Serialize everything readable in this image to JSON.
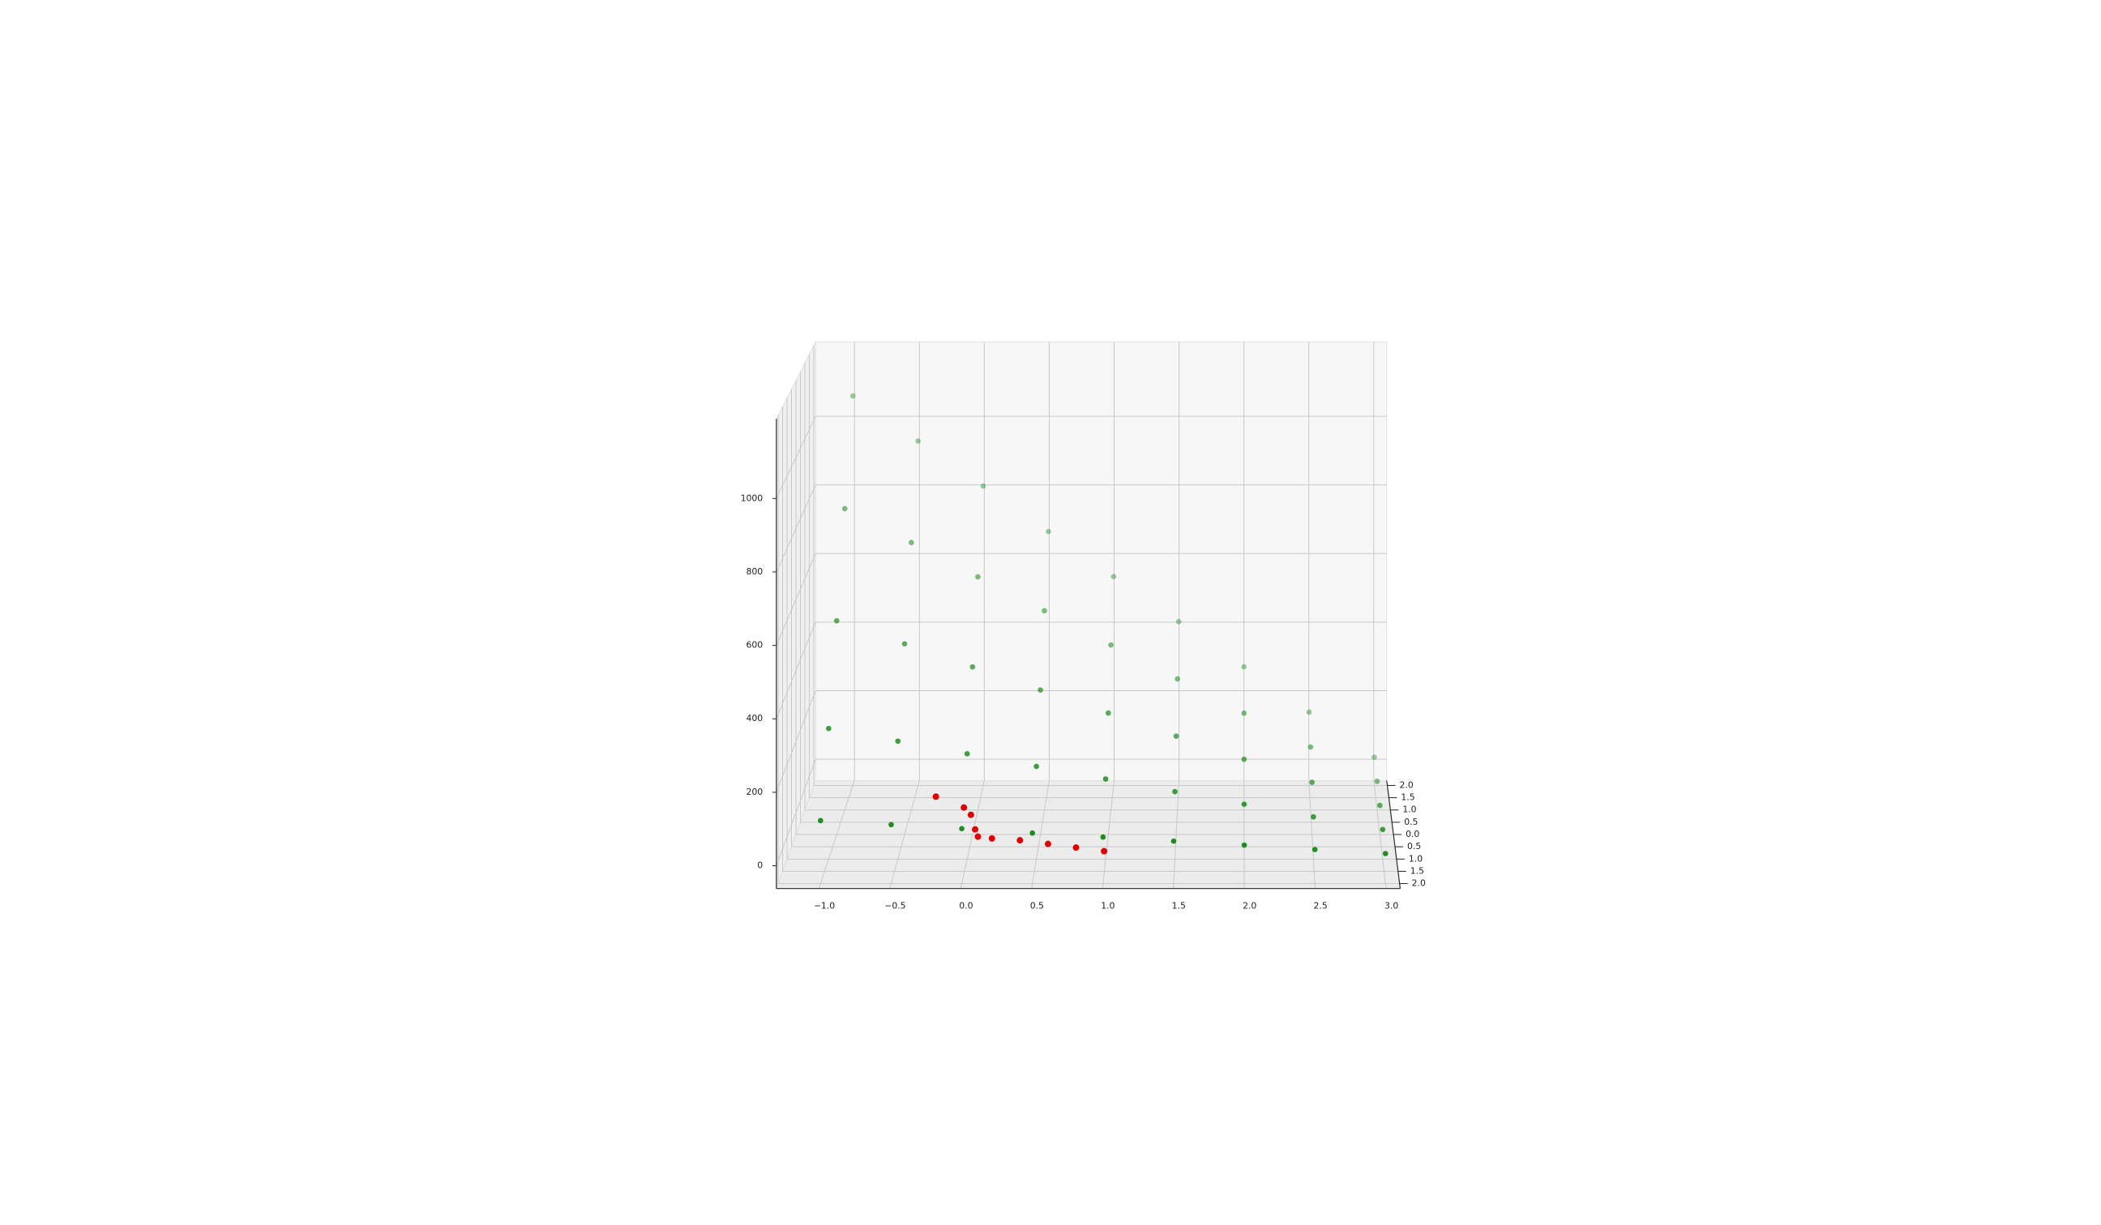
{
  "chart_data": {
    "type": "scatter3d",
    "xlim": [
      -1.3,
      3.1
    ],
    "ylim": [
      -2.2,
      2.2
    ],
    "zlim": [
      -62,
      1217
    ],
    "xticks": [
      {
        "value": -1,
        "label": "−1.0"
      },
      {
        "value": -0.5,
        "label": "−0.5"
      },
      {
        "value": 0,
        "label": "0.0"
      },
      {
        "value": 0.5,
        "label": "0.5"
      },
      {
        "value": 1,
        "label": "1.0"
      },
      {
        "value": 1.5,
        "label": "1.5"
      },
      {
        "value": 2,
        "label": "2.0"
      },
      {
        "value": 2.5,
        "label": "2.5"
      },
      {
        "value": 3,
        "label": "3.0"
      }
    ],
    "yticks": [
      {
        "value": -2,
        "label": "2.0"
      },
      {
        "value": -1.5,
        "label": "1.5"
      },
      {
        "value": -1,
        "label": "1.0"
      },
      {
        "value": -0.5,
        "label": "0.5"
      },
      {
        "value": 0,
        "label": "0.0"
      },
      {
        "value": 0.5,
        "label": "0.5"
      },
      {
        "value": 1,
        "label": "1.0"
      },
      {
        "value": 1.5,
        "label": "1.5"
      },
      {
        "value": 2,
        "label": "2.0"
      }
    ],
    "zticks": [
      0,
      200,
      400,
      600,
      800,
      1000
    ],
    "grid": true,
    "series": [
      {
        "color": "#1a8a1a",
        "x": [
          -1,
          -0.5,
          0,
          0.5,
          1,
          1.5,
          2,
          2.5,
          3,
          -1,
          -0.5,
          0,
          0.5,
          1,
          1.5,
          2,
          2.5,
          3,
          -1,
          -0.5,
          0,
          0.5,
          1,
          1.5,
          2,
          2.5,
          3,
          -1,
          -0.5,
          0,
          0.5,
          1,
          1.5,
          2,
          2.5,
          3,
          -1,
          -0.5,
          0,
          0.5,
          1,
          1.5,
          2,
          2.5,
          3
        ],
        "y": [
          2,
          2,
          2,
          2,
          2,
          2,
          2,
          2,
          2,
          1,
          1,
          1,
          1,
          1,
          1,
          1,
          1,
          1,
          0,
          0,
          0,
          0,
          0,
          0,
          0,
          0,
          0,
          -1,
          -1,
          -1,
          -1,
          -1,
          -1,
          -1,
          -1,
          -1,
          -2,
          -2,
          -2,
          -2,
          -2,
          -2,
          -2,
          -2,
          -2
        ],
        "z": [
          1070,
          939,
          808,
          676,
          545,
          414,
          283,
          151,
          20,
          800,
          703,
          605,
          508,
          410,
          313,
          215,
          118,
          20,
          540,
          475,
          410,
          345,
          280,
          215,
          150,
          85,
          20,
          300,
          265,
          230,
          195,
          160,
          125,
          90,
          55,
          20,
          110,
          99,
          88,
          76,
          65,
          54,
          43,
          31,
          20
        ]
      },
      {
        "color": "#e00000",
        "x": [
          -0.2,
          0,
          0.05,
          0.08,
          0.1,
          0.2,
          0.4,
          0.6,
          0.8,
          1.0
        ],
        "y": [
          -1.6,
          -1.6,
          -1.6,
          -1.6,
          -1.6,
          -1.6,
          -1.6,
          -1.6,
          -1.6,
          -1.6
        ],
        "z": [
          150,
          120,
          100,
          60,
          40,
          35,
          30,
          20,
          10,
          0
        ]
      }
    ]
  }
}
